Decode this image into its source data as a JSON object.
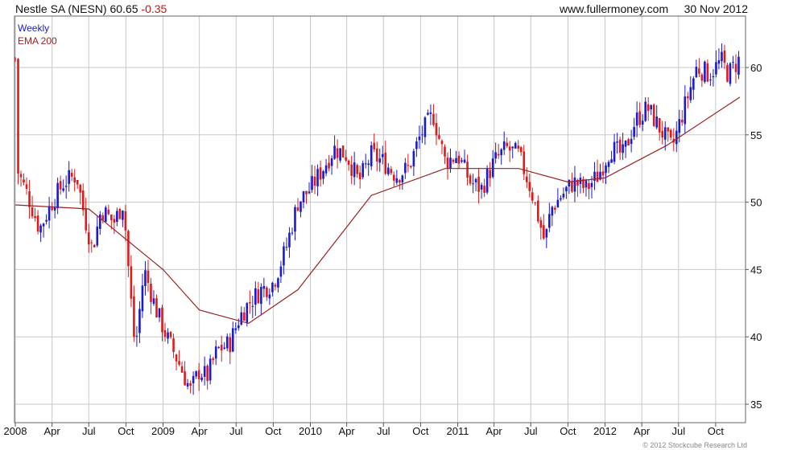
{
  "header": {
    "title": "Nestle SA (NESN)",
    "last": "60.65",
    "change": "-0.35",
    "site": "www.fullermoney.com",
    "date": "30 Nov 2012"
  },
  "legend": {
    "weekly": "Weekly",
    "ema": "EMA 200"
  },
  "copyright": "© 2012 Stockcube Research Ltd",
  "colors": {
    "up": "#1a1ad0",
    "down": "#e01a1a",
    "ema": "#992222",
    "grid": "#c8c8c8",
    "frame": "#666666"
  },
  "chart_data": {
    "type": "line",
    "series": [
      {
        "name": "Weekly",
        "description_values": "approximate weekly close path",
        "x": [
          "2008-01-04",
          "2008-02-01",
          "2008-03-01",
          "2008-04-01",
          "2008-05-01",
          "2008-06-01",
          "2008-06-20",
          "2008-07-10",
          "2008-08-01",
          "2008-09-01",
          "2008-09-25",
          "2008-10-10",
          "2008-10-24",
          "2008-11-15",
          "2008-12-15",
          "2009-01-10",
          "2009-02-10",
          "2009-03-10",
          "2009-04-01",
          "2009-04-20",
          "2009-05-15",
          "2009-06-15",
          "2009-07-10",
          "2009-08-01",
          "2009-09-01",
          "2009-10-01",
          "2009-11-01",
          "2009-12-01",
          "2010-01-01",
          "2010-02-01",
          "2010-03-01",
          "2010-04-01",
          "2010-05-01",
          "2010-06-01",
          "2010-07-01",
          "2010-08-01",
          "2010-09-01",
          "2010-10-01",
          "2010-11-01",
          "2010-12-01",
          "2011-01-01",
          "2011-02-01",
          "2011-03-01",
          "2011-04-01",
          "2011-05-01",
          "2011-06-01",
          "2011-07-01",
          "2011-08-05",
          "2011-08-20",
          "2011-09-15",
          "2011-10-15",
          "2011-11-15",
          "2011-12-15",
          "2012-01-15",
          "2012-02-15",
          "2012-03-15",
          "2012-04-15",
          "2012-05-15",
          "2012-06-15",
          "2012-07-15",
          "2012-08-15",
          "2012-09-15",
          "2012-10-15",
          "2012-11-01",
          "2012-11-30"
        ],
        "values": [
          52.5,
          50.5,
          48,
          50,
          51.5,
          52,
          49,
          46.5,
          49.5,
          48.5,
          50,
          44,
          39,
          45,
          42,
          40,
          38,
          36,
          37.5,
          37,
          39,
          39.5,
          41.5,
          42.5,
          43.5,
          44,
          46.5,
          50,
          51,
          52.5,
          54,
          53.5,
          51.5,
          53.5,
          53,
          52,
          52.5,
          55,
          56.5,
          53,
          53.5,
          51.5,
          51,
          53,
          54,
          53.5,
          51,
          47,
          49.5,
          50.5,
          51.5,
          51,
          52,
          54,
          53.5,
          56,
          57,
          55.5,
          54,
          57,
          60,
          59.5,
          60.5,
          59.5,
          60.65
        ]
      },
      {
        "name": "EMA 200",
        "x": [
          "2008-01-01",
          "2008-07-01",
          "2009-01-01",
          "2009-04-01",
          "2009-08-01",
          "2009-12-01",
          "2010-06-01",
          "2010-12-01",
          "2011-06-01",
          "2011-10-01",
          "2012-01-01",
          "2012-06-01",
          "2012-11-30"
        ],
        "values": [
          49.8,
          49.5,
          45,
          42,
          41,
          43.5,
          50.5,
          52.5,
          52.5,
          51.5,
          51.8,
          54.2,
          57.8
        ]
      }
    ],
    "x_ticks": [
      "2008",
      "Apr",
      "Jul",
      "Oct",
      "2009",
      "Apr",
      "Jul",
      "Oct",
      "2010",
      "Apr",
      "Jul",
      "Oct",
      "2011",
      "Apr",
      "Jul",
      "Oct",
      "2012",
      "Apr",
      "Jul",
      "Oct"
    ],
    "y_ticks": [
      "35",
      "40",
      "45",
      "50",
      "55",
      "60"
    ],
    "ylim": [
      34.5,
      62.5
    ],
    "y_axis_side": "right",
    "grid": true
  }
}
